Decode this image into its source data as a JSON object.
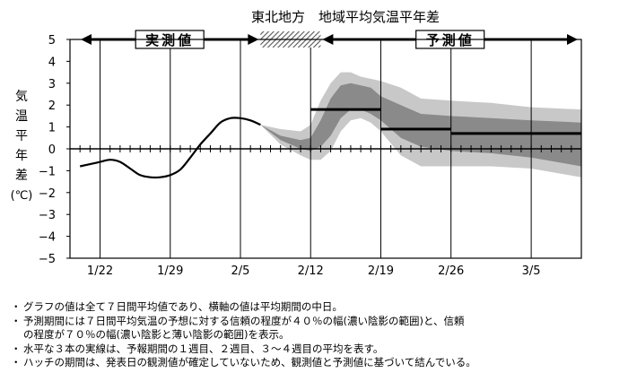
{
  "chart_data": {
    "type": "line",
    "title": "東北地方　地域平均気温平年差",
    "ylabel": "気温平年差(℃)",
    "ylabel_chars": [
      "気",
      "温",
      "平",
      "年",
      "差"
    ],
    "ylabel_unit": "(℃)",
    "ylim": [
      -5,
      5
    ],
    "yticks": [
      5,
      4,
      3,
      2,
      1,
      0,
      -1,
      -2,
      -3,
      -4,
      -5
    ],
    "ytick_labels": [
      "5",
      "4",
      "3",
      "2",
      "1",
      "0",
      "−1",
      "−2",
      "−3",
      "−4",
      "−5"
    ],
    "x_start": "1/19",
    "x_end": "3/10",
    "xticks": [
      "1/22",
      "1/29",
      "2/5",
      "2/12",
      "2/19",
      "2/26",
      "3/5"
    ],
    "xtick_labels": [
      "1/22",
      "1/29",
      "2/5",
      "2/12",
      "2/19",
      "2/26",
      "3/5"
    ],
    "grid": "vertical",
    "zero_line_daily_ticks": true,
    "banner": {
      "observed_label": "実測値",
      "observed_range": [
        "1/19",
        "2/7"
      ],
      "hatch_range": [
        "2/7",
        "2/13"
      ],
      "forecast_label": "予測値",
      "forecast_range": [
        "2/13",
        "3/10"
      ]
    },
    "observed": {
      "x": [
        "1/20",
        "1/21",
        "1/22",
        "1/23",
        "1/24",
        "1/25",
        "1/26",
        "1/27",
        "1/28",
        "1/29",
        "1/30",
        "1/31",
        "2/1",
        "2/2",
        "2/3",
        "2/4",
        "2/5",
        "2/6",
        "2/7"
      ],
      "y": [
        -0.8,
        -0.7,
        -0.6,
        -0.5,
        -0.6,
        -0.9,
        -1.2,
        -1.3,
        -1.3,
        -1.2,
        -0.95,
        -0.4,
        0.2,
        0.7,
        1.2,
        1.4,
        1.4,
        1.3,
        1.1
      ]
    },
    "band70": {
      "x": [
        "2/7",
        "2/9",
        "2/11",
        "2/12",
        "2/13",
        "2/14",
        "2/15",
        "2/16",
        "2/17",
        "2/18",
        "2/19",
        "2/21",
        "2/23",
        "2/26",
        "3/1",
        "3/5",
        "3/10"
      ],
      "upper": [
        1.1,
        0.9,
        0.8,
        1.1,
        2.2,
        3.0,
        3.5,
        3.5,
        3.3,
        3.2,
        3.1,
        2.8,
        2.3,
        2.2,
        2.1,
        1.9,
        1.8
      ],
      "lower": [
        1.1,
        0.2,
        -0.3,
        -0.5,
        -0.5,
        -0.1,
        0.8,
        1.3,
        1.4,
        1.2,
        0.8,
        -0.3,
        -0.8,
        -0.8,
        -0.8,
        -0.9,
        -1.3
      ]
    },
    "band40": {
      "x": [
        "2/7",
        "2/9",
        "2/11",
        "2/12",
        "2/13",
        "2/14",
        "2/15",
        "2/16",
        "2/17",
        "2/18",
        "2/19",
        "2/21",
        "2/23",
        "2/26",
        "3/1",
        "3/5",
        "3/10"
      ],
      "upper": [
        1.1,
        0.6,
        0.4,
        0.5,
        1.3,
        2.3,
        2.9,
        3.0,
        2.9,
        2.8,
        2.4,
        2.0,
        1.6,
        1.5,
        1.4,
        1.3,
        1.2
      ],
      "lower": [
        1.1,
        0.4,
        0.0,
        -0.1,
        0.1,
        0.6,
        1.4,
        1.8,
        1.8,
        1.6,
        1.3,
        0.5,
        0.1,
        -0.1,
        -0.2,
        -0.4,
        -0.8
      ]
    },
    "forecast_segments": [
      {
        "x": [
          "2/12",
          "2/19"
        ],
        "y": 1.8
      },
      {
        "x": [
          "2/19",
          "2/26"
        ],
        "y": 0.9
      },
      {
        "x": [
          "2/26",
          "3/10"
        ],
        "y": 0.7
      }
    ],
    "colors": {
      "band70": "#c8c8c8",
      "band40": "#8a8a8a",
      "line": "#000000",
      "hatch": "#555555"
    }
  },
  "notes": [
    "グラフの値は全て７日間平均値であり、横軸の値は平均期間の中日。",
    "予測期間には７日間平均気温の予想に対する信頼の程度が４０％の幅(濃い陰影の範囲)と、信頼",
    "の程度が７０％の幅(濃い陰影と薄い陰影の範囲)を表示。",
    "水平な３本の実線は、予報期間の１週目、２週目、３～４週目の平均を表す。",
    "ハッチの期間は、発表日の観測値が確定していないため、観測値と予測値に基づいて結んでいる。"
  ],
  "bullet": "・"
}
